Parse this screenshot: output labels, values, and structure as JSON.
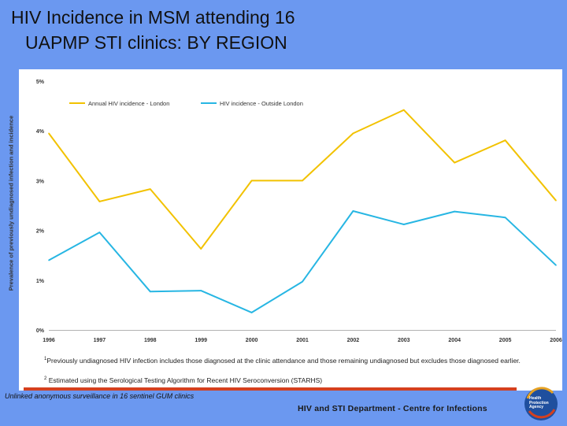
{
  "slide": {
    "title_line1": "HIV Incidence in MSM attending 16",
    "title_line2": "UAPMP STI clinics:  BY REGION"
  },
  "chart_data": {
    "type": "line",
    "title": "",
    "xlabel": "",
    "ylabel": "Prevalence of previously undiagnosed infection and incidence",
    "x": [
      "1996",
      "1997",
      "1998",
      "1999",
      "2000",
      "2001",
      "2002",
      "2003",
      "2004",
      "2005",
      "2006"
    ],
    "yticks": [
      "0%",
      "1%",
      "2%",
      "3%",
      "4%",
      "5%"
    ],
    "ylim": [
      0,
      5
    ],
    "legend_position": "top-left",
    "series": [
      {
        "name": "Annual HIV incidence - London",
        "color": "#f2c200",
        "values": [
          3.95,
          2.58,
          2.83,
          1.63,
          3.0,
          3.0,
          3.95,
          4.42,
          3.36,
          3.81,
          2.6
        ]
      },
      {
        "name": "HIV incidence - Outside London",
        "color": "#27b6e3",
        "values": [
          1.4,
          1.96,
          0.77,
          0.79,
          0.35,
          0.97,
          2.39,
          2.12,
          2.38,
          2.26,
          1.3
        ]
      }
    ]
  },
  "footnotes": {
    "n1_mark": "1",
    "n1_text": "Previously undiagnosed HIV infection includes those diagnosed at the clinic attendance and those remaining undiagnosed but excludes those diagnosed earlier.",
    "n2_mark": "2",
    "n2_text": "Estimated using the Serological Testing Algorithm for Recent HIV Seroconversion (STARHS)"
  },
  "footer": {
    "survey": "Unlinked anonymous surveillance in 16 sentinel GUM clinics",
    "department": "HIV and STI Department  - Centre for Infections",
    "logo_line1": "Health",
    "logo_line2": "Protection",
    "logo_line3": "Agency"
  },
  "colors": {
    "background": "#6b98f0",
    "accent_bar": "#d4401f",
    "london": "#f2c200",
    "outside_london": "#27b6e3"
  }
}
